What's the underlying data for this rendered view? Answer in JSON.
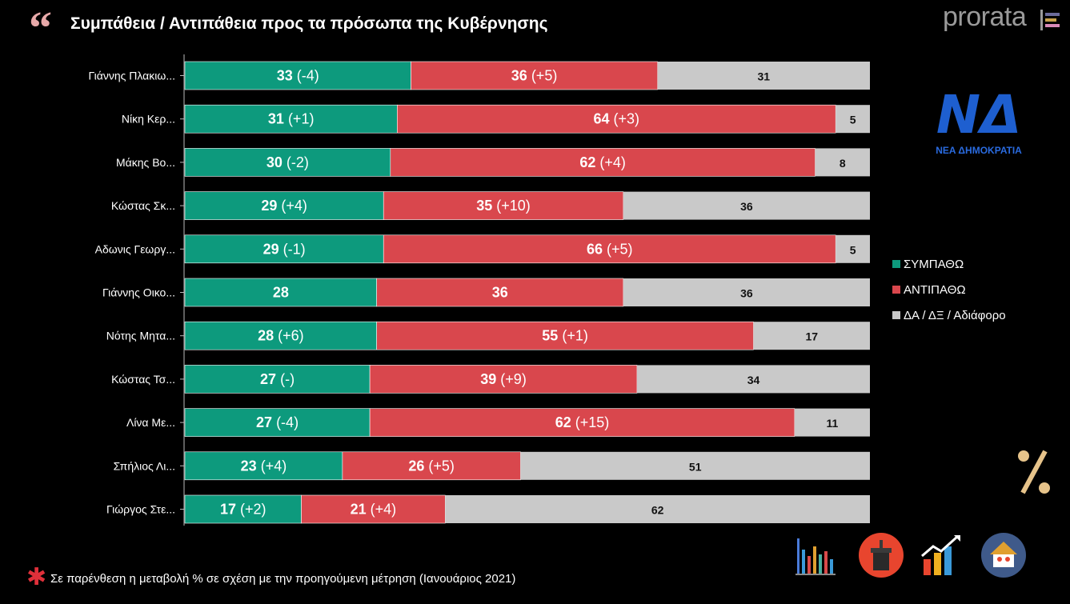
{
  "header": {
    "title": "Συμπάθεια / Αντιπάθεια προς τα πρόσωπα της Κυβέρνησης",
    "brand": "prorata",
    "party_logo_text": "ΝΕΑ ΔΗΜΟΚΡΑΤΙΑ",
    "party_logo_mark": "ΝΔ"
  },
  "footer": {
    "note": "Σε παρένθεση η μεταβολή % σε σχέση με την προηγούμενη μέτρηση (Ιανουάριος 2021)"
  },
  "colors": {
    "sympathy": "#0d9a7d",
    "antipathy": "#d9474d",
    "neutral": "#c9c9c9",
    "background": "#000000"
  },
  "icons": [
    "bar-chart-icon",
    "podium-icon",
    "growth-chart-icon",
    "home-people-icon",
    "percent-icon"
  ],
  "chart_data": {
    "type": "bar",
    "orientation": "horizontal",
    "stacked": true,
    "categories": [
      "Γιάννης Πλακιω...",
      "Νίκη Κερ...",
      "Μάκης Βο...",
      "Κώστας Σκ...",
      "Αδωνις Γεωργ...",
      "Γιάννης Οικο...",
      "Νότης Μητα...",
      "Κώστας Τσ...",
      "Λίνα Με...",
      "Σπήλιος Λι...",
      "Γιώργος Στε..."
    ],
    "series": [
      {
        "name": "ΣΥΜΠΑΘΩ",
        "values": [
          33,
          31,
          30,
          29,
          29,
          28,
          28,
          27,
          27,
          23,
          17
        ],
        "changes": [
          "(-4)",
          "(+1)",
          "(-2)",
          "(+4)",
          "(-1)",
          "",
          "(+6)",
          "(-)",
          "(-4)",
          "(+4)",
          "(+2)"
        ]
      },
      {
        "name": "ΑΝΤΙΠΑΘΩ",
        "values": [
          36,
          64,
          62,
          35,
          66,
          36,
          55,
          39,
          62,
          26,
          21
        ],
        "changes": [
          "(+5)",
          "(+3)",
          "(+4)",
          "(+10)",
          "(+5)",
          "",
          "(+1)",
          "(+9)",
          "(+15)",
          "(+5)",
          "(+4)"
        ]
      },
      {
        "name": "ΔΑ / ΔΞ / Αδιάφορο",
        "values": [
          31,
          5,
          8,
          36,
          5,
          36,
          17,
          34,
          11,
          51,
          62
        ],
        "changes": [
          "",
          "",
          "",
          "",
          "",
          "",
          "",
          "",
          "",
          "",
          ""
        ]
      }
    ],
    "xlim": [
      0,
      100
    ],
    "legend_position": "right",
    "grid": false
  }
}
